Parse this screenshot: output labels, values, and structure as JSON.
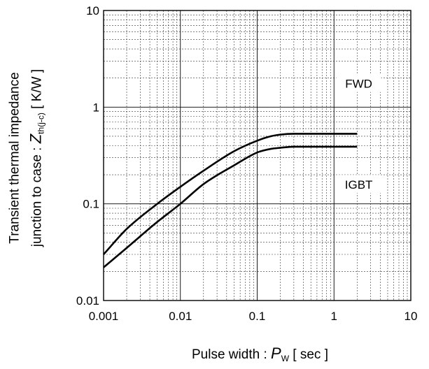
{
  "chart_data": {
    "type": "line",
    "xscale": "log",
    "yscale": "log",
    "xlim": [
      0.001,
      10
    ],
    "ylim": [
      0.01,
      10
    ],
    "x_ticks": [
      "0.001",
      "0.01",
      "0.1",
      "1",
      "10"
    ],
    "y_ticks": [
      "0.01",
      "0.1",
      "1",
      "10"
    ],
    "grid": true,
    "xlabel": {
      "prefix": "Pulse width : ",
      "symbol": "P",
      "subscript": "W",
      "suffix": " [ sec ]"
    },
    "ylabel": {
      "line1": "Transient thermal impedance",
      "line2_prefix": "junction to case : ",
      "symbol": "Z",
      "subscript": "th(j-c)",
      "suffix": " [ K/W ]"
    },
    "annotations": [
      "FWD",
      "IGBT"
    ],
    "series": [
      {
        "name": "FWD",
        "x": [
          0.001,
          0.002,
          0.005,
          0.01,
          0.02,
          0.05,
          0.1,
          0.15,
          0.2,
          0.3,
          0.5,
          1,
          2
        ],
        "y": [
          0.03,
          0.055,
          0.1,
          0.15,
          0.22,
          0.35,
          0.45,
          0.5,
          0.52,
          0.53,
          0.53,
          0.53,
          0.53
        ]
      },
      {
        "name": "IGBT",
        "x": [
          0.001,
          0.002,
          0.005,
          0.01,
          0.02,
          0.05,
          0.1,
          0.15,
          0.2,
          0.3,
          0.5,
          1,
          2
        ],
        "y": [
          0.022,
          0.035,
          0.065,
          0.1,
          0.16,
          0.25,
          0.34,
          0.37,
          0.38,
          0.39,
          0.39,
          0.39,
          0.39
        ]
      }
    ]
  }
}
